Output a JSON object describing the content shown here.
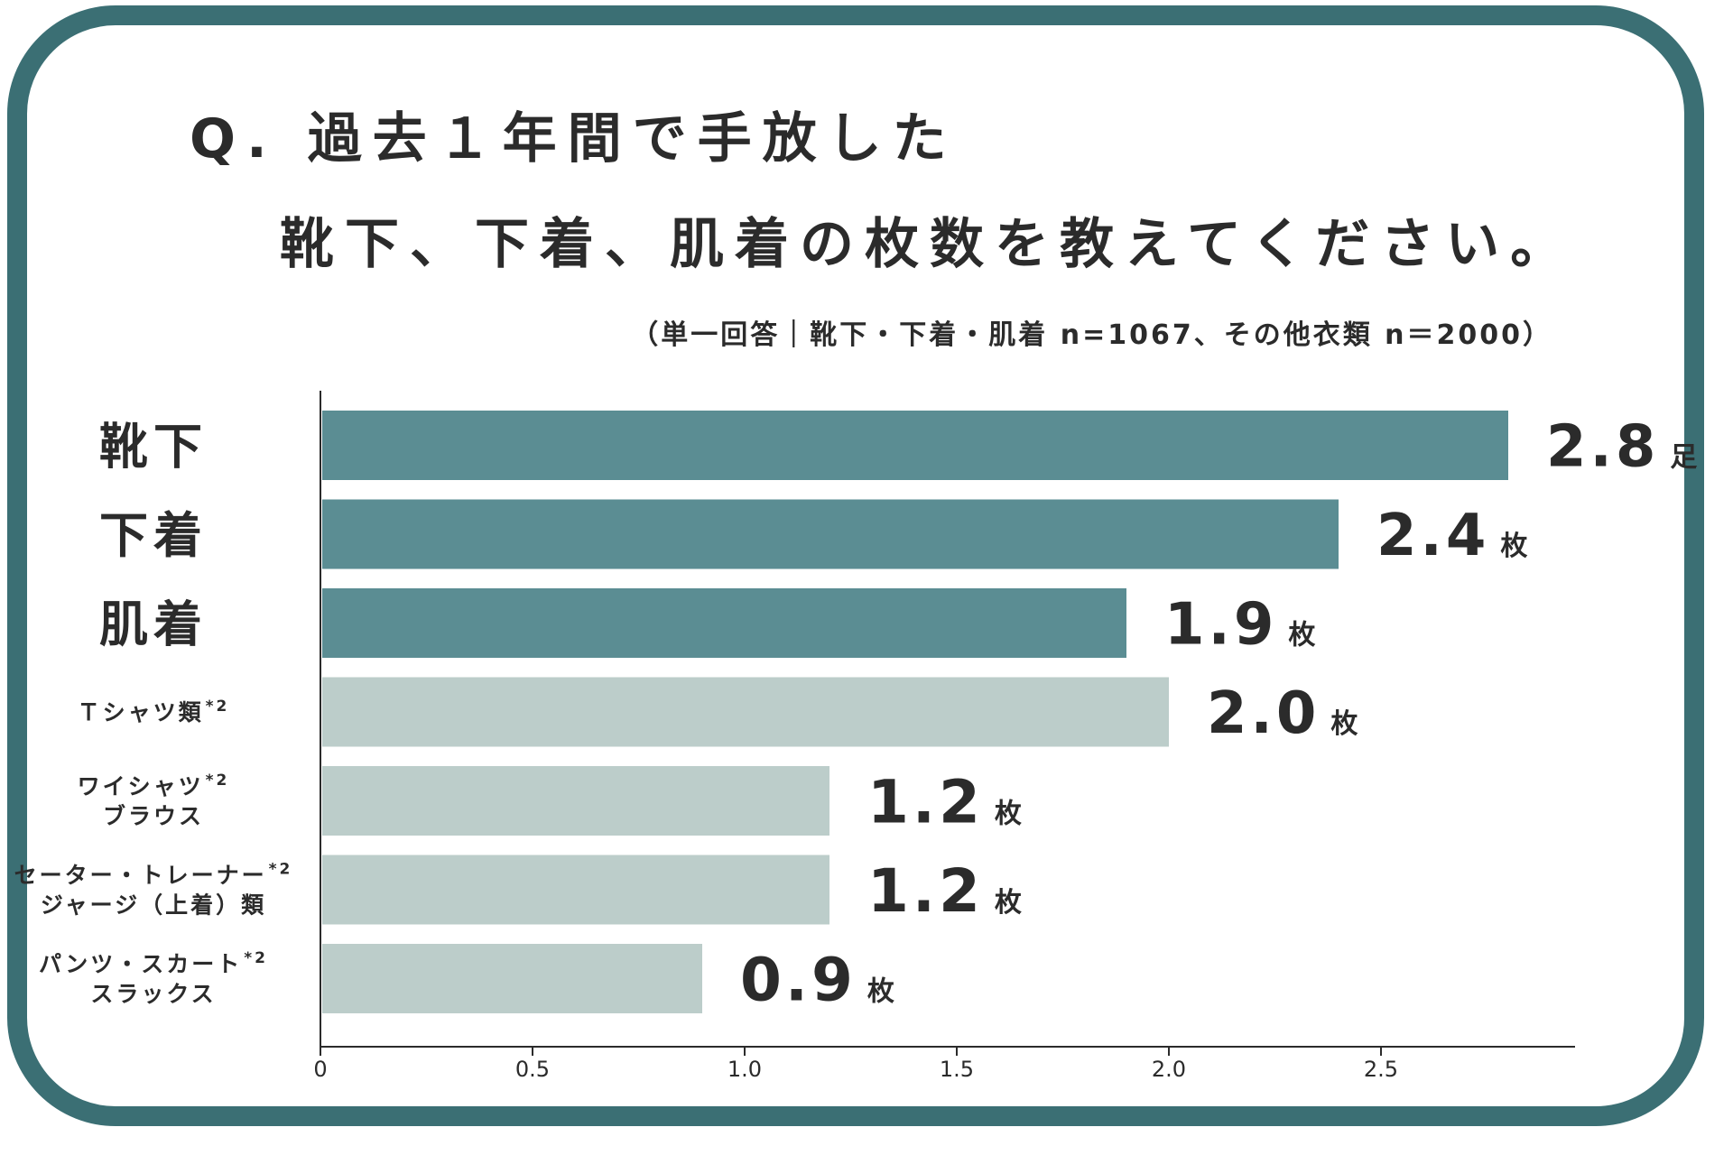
{
  "title_line1": "Q. 過去１年間で手放した",
  "title_line2": "靴下、下着、肌着の枚数を教えてください。",
  "subtitle": "（単一回答｜靴下・下着・肌着 n=1067、その他衣類 n＝2000）",
  "colors": {
    "frame": "#3b6f74",
    "primary_bar": "#5b8d93",
    "secondary_bar": "#bccdca",
    "text": "#2b2b2b"
  },
  "chart_data": {
    "type": "bar",
    "orientation": "horizontal",
    "xlim": [
      0,
      2.9
    ],
    "x_ticks": [
      "0",
      "0.5",
      "1.0",
      "1.5",
      "2.0",
      "2.5"
    ],
    "x_tick_values": [
      0,
      0.5,
      1.0,
      1.5,
      2.0,
      2.5
    ],
    "categories": [
      {
        "lines": [
          "靴下"
        ],
        "sup": "",
        "group": "primary"
      },
      {
        "lines": [
          "下着"
        ],
        "sup": "",
        "group": "primary"
      },
      {
        "lines": [
          "肌着"
        ],
        "sup": "",
        "group": "primary"
      },
      {
        "lines": [
          "Ｔシャツ類"
        ],
        "sup": "*2",
        "group": "secondary"
      },
      {
        "lines": [
          "ワイシャツ",
          "ブラウス"
        ],
        "sup": "*2",
        "group": "secondary"
      },
      {
        "lines": [
          "セーター・トレーナー",
          "ジャージ（上着）類"
        ],
        "sup": "*2",
        "group": "secondary"
      },
      {
        "lines": [
          "パンツ・スカート",
          "スラックス"
        ],
        "sup": "*2",
        "group": "secondary"
      }
    ],
    "values": [
      2.8,
      2.4,
      1.9,
      2.0,
      1.2,
      1.2,
      0.9
    ],
    "value_labels": [
      "2.8",
      "2.4",
      "1.9",
      "2.0",
      "1.2",
      "1.2",
      "0.9"
    ],
    "units": [
      "足",
      "枚",
      "枚",
      "枚",
      "枚",
      "枚",
      "枚"
    ]
  }
}
